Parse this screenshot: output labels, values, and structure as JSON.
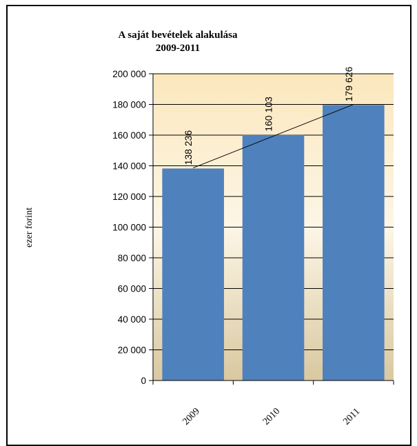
{
  "chart_data": {
    "type": "bar",
    "title": "A saját bevételek alakulása",
    "subtitle": "2009-2011",
    "ylabel": "ezer forint",
    "xlabel": "",
    "categories": [
      "2009",
      "2010",
      "2011"
    ],
    "values": [
      138236,
      160103,
      179626
    ],
    "data_labels": [
      "138 236",
      "160 103",
      "179 626"
    ],
    "ylim": [
      0,
      200000
    ],
    "y_ticks": [
      0,
      20000,
      40000,
      60000,
      80000,
      100000,
      120000,
      140000,
      160000,
      180000,
      200000
    ],
    "y_tick_labels": [
      "0",
      "20 000",
      "40 000",
      "60 000",
      "80 000",
      "100 000",
      "120 000",
      "140 000",
      "160 000",
      "180 000",
      "200 000"
    ],
    "trendline": "linear",
    "grid": "horizontal",
    "legend": "none",
    "colors": {
      "bar": "#4f81bd",
      "plot_bg_top": "#fbe7bd",
      "plot_bg_mid": "#fdf6e6",
      "plot_bg_bottom": "#d9c8a0",
      "grid": "#000000",
      "trendline": "#000000"
    }
  }
}
